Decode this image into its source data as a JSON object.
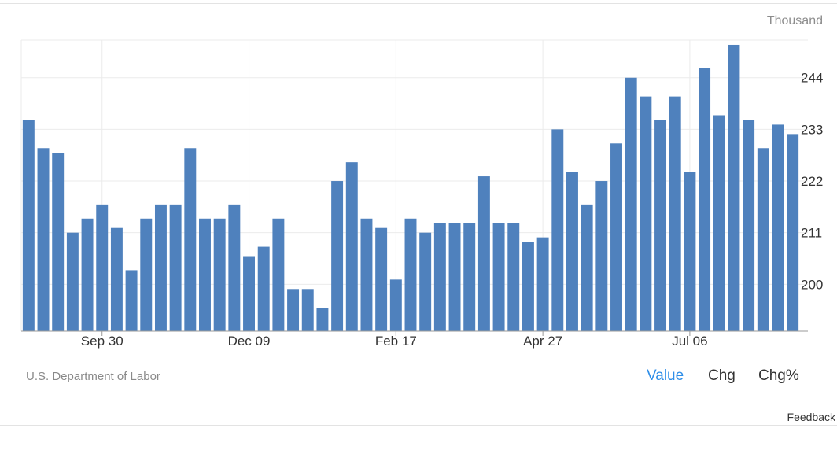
{
  "unit_label": "Thousand",
  "source": "U.S. Department of Labor",
  "tabs": [
    {
      "label": "Value",
      "active": true
    },
    {
      "label": "Chg",
      "active": false
    },
    {
      "label": "Chg%",
      "active": false
    }
  ],
  "feedback": "Feedback",
  "colors": {
    "bar": "#4f81bd",
    "active_tab": "#2e8ee8",
    "grid": "#ebebeb"
  },
  "chart_data": {
    "type": "bar",
    "ylim": [
      190,
      252
    ],
    "yticks": [
      200,
      211,
      222,
      233,
      244
    ],
    "xtick_labels": [
      {
        "label": "Sep 30",
        "index": 5
      },
      {
        "label": "Dec 09",
        "index": 15
      },
      {
        "label": "Feb 17",
        "index": 25
      },
      {
        "label": "Apr 27",
        "index": 35
      },
      {
        "label": "Jul 06",
        "index": 45
      }
    ],
    "values": [
      235,
      229,
      228,
      211,
      214,
      217,
      212,
      203,
      214,
      217,
      217,
      229,
      214,
      214,
      217,
      206,
      208,
      214,
      199,
      199,
      195,
      222,
      226,
      214,
      212,
      201,
      214,
      211,
      213,
      213,
      213,
      223,
      213,
      213,
      209,
      210,
      233,
      224,
      217,
      222,
      230,
      244,
      240,
      235,
      240,
      224,
      246,
      236,
      251,
      235,
      229,
      234,
      232
    ],
    "grid": true
  }
}
